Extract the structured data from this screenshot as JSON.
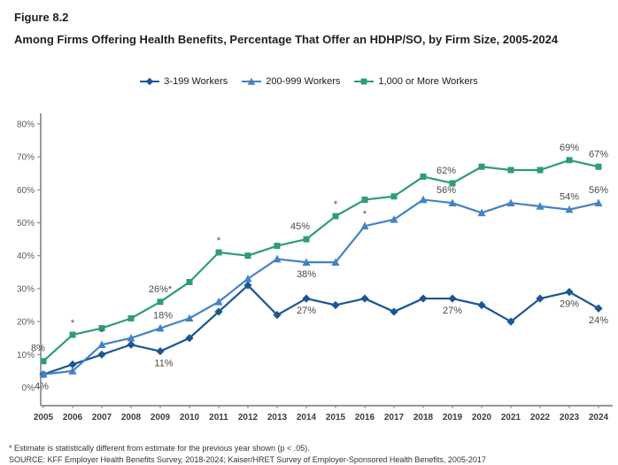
{
  "figure": {
    "label": "Figure 8.2",
    "title": "Among Firms Offering Health Benefits, Percentage That Offer an HDHP/SO, by Firm Size, 2005-2024"
  },
  "footnotes": {
    "significance": "* Estimate is statistically different from estimate for the previous year shown (p < .05).",
    "source": "SOURCE: KFF Employer Health Benefits Survey, 2018-2024; Kaiser/HRET Survey of Employer-Sponsored Health Benefits, 2005-2017"
  },
  "chart_data": {
    "type": "line",
    "title": "Among Firms Offering Health Benefits, Percentage That Offer an HDHP/SO, by Firm Size, 2005-2024",
    "xlabel": "",
    "ylabel": "",
    "x": [
      2005,
      2006,
      2007,
      2008,
      2009,
      2010,
      2011,
      2012,
      2013,
      2014,
      2015,
      2016,
      2017,
      2018,
      2019,
      2020,
      2021,
      2022,
      2023,
      2024
    ],
    "ylim": [
      0,
      80
    ],
    "ytick_interval": 10,
    "ytick_labels": [
      "0%",
      "10%",
      "20%",
      "30%",
      "40%",
      "50%",
      "60%",
      "70%",
      "80%"
    ],
    "grid": false,
    "legend_position": "top",
    "series": [
      {
        "name": "3-199 Workers",
        "color": "#1A5693",
        "marker": "diamond",
        "values": [
          4,
          7,
          10,
          13,
          11,
          15,
          23,
          31,
          22,
          27,
          25,
          27,
          23,
          27,
          27,
          25,
          20,
          27,
          29,
          24
        ]
      },
      {
        "name": "200-999 Workers",
        "color": "#4483C2",
        "marker": "triangle",
        "values": [
          4,
          5,
          13,
          15,
          18,
          21,
          26,
          33,
          39,
          38,
          38,
          49,
          51,
          57,
          56,
          53,
          56,
          55,
          54,
          56
        ]
      },
      {
        "name": "1,000 or More Workers",
        "color": "#2E9C77",
        "marker": "square",
        "values": [
          8,
          16,
          18,
          21,
          26,
          32,
          41,
          40,
          43,
          45,
          52,
          57,
          58,
          64,
          62,
          67,
          66,
          66,
          69,
          67
        ]
      }
    ],
    "point_labels": [
      {
        "series": 2,
        "year": 2005,
        "text": "8%",
        "placement": "above",
        "dx": -6
      },
      {
        "series": 0,
        "year": 2005,
        "text": "4%",
        "placement": "below",
        "dx": -2
      },
      {
        "series": 2,
        "year": 2009,
        "text": "26%*",
        "placement": "above"
      },
      {
        "series": 1,
        "year": 2009,
        "text": "18%",
        "placement": "above",
        "dx": 3
      },
      {
        "series": 0,
        "year": 2009,
        "text": "11%",
        "placement": "below",
        "dx": 4
      },
      {
        "series": 2,
        "year": 2014,
        "text": "45%",
        "placement": "above",
        "dx": -7
      },
      {
        "series": 1,
        "year": 2014,
        "text": "38%",
        "placement": "below"
      },
      {
        "series": 0,
        "year": 2014,
        "text": "27%",
        "placement": "below"
      },
      {
        "series": 2,
        "year": 2019,
        "text": "62%",
        "placement": "above",
        "dx": -7
      },
      {
        "series": 1,
        "year": 2019,
        "text": "56%",
        "placement": "above",
        "dx": -7
      },
      {
        "series": 0,
        "year": 2019,
        "text": "27%",
        "placement": "below"
      },
      {
        "series": 2,
        "year": 2023,
        "text": "69%",
        "placement": "above"
      },
      {
        "series": 1,
        "year": 2023,
        "text": "54%",
        "placement": "above"
      },
      {
        "series": 0,
        "year": 2023,
        "text": "29%",
        "placement": "below"
      },
      {
        "series": 2,
        "year": 2024,
        "text": "67%",
        "placement": "above"
      },
      {
        "series": 1,
        "year": 2024,
        "text": "56%",
        "placement": "above"
      },
      {
        "series": 0,
        "year": 2024,
        "text": "24%",
        "placement": "below"
      }
    ],
    "asterisks": [
      {
        "series": 2,
        "year": 2006
      },
      {
        "series": 1,
        "year": 2007
      },
      {
        "series": 2,
        "year": 2011
      },
      {
        "series": 2,
        "year": 2015
      },
      {
        "series": 1,
        "year": 2016
      }
    ]
  }
}
